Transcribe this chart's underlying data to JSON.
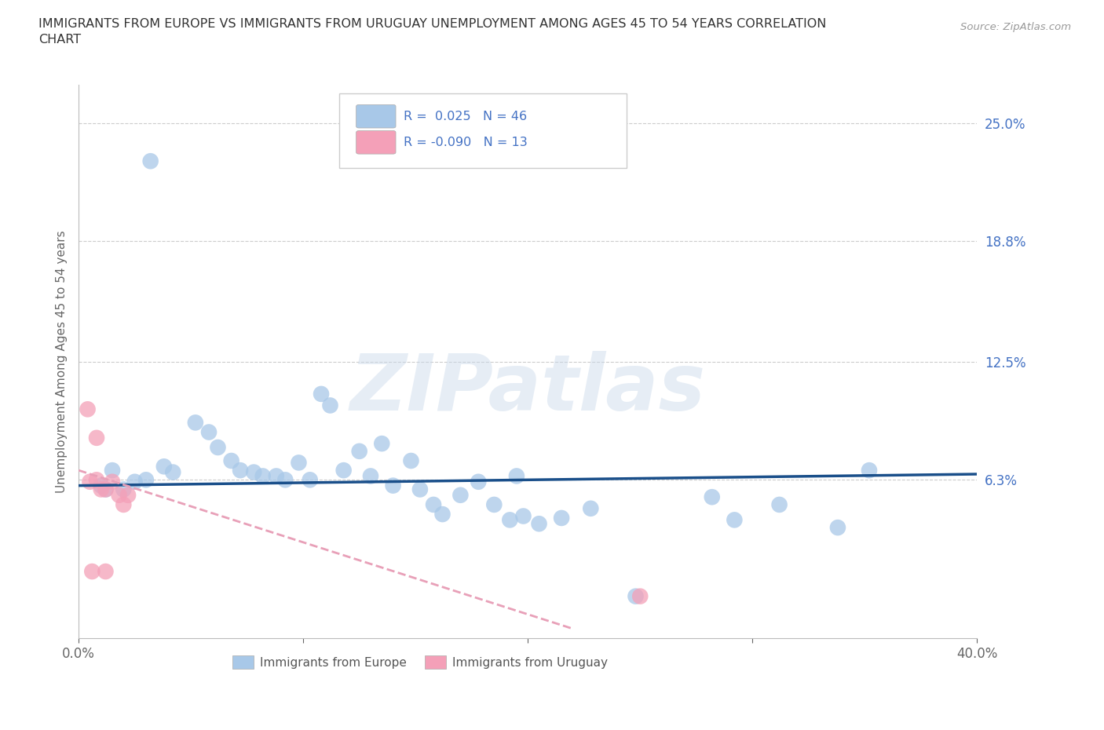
{
  "title": "IMMIGRANTS FROM EUROPE VS IMMIGRANTS FROM URUGUAY UNEMPLOYMENT AMONG AGES 45 TO 54 YEARS CORRELATION\nCHART",
  "source_text": "Source: ZipAtlas.com",
  "ylabel": "Unemployment Among Ages 45 to 54 years",
  "xlim": [
    0.0,
    0.4
  ],
  "ylim": [
    -0.02,
    0.27
  ],
  "xticks": [
    0.0,
    0.1,
    0.2,
    0.3,
    0.4
  ],
  "xticklabels": [
    "0.0%",
    "",
    "",
    "",
    "40.0%"
  ],
  "ytick_positions": [
    0.063,
    0.125,
    0.188,
    0.25
  ],
  "ytick_labels": [
    "6.3%",
    "12.5%",
    "18.8%",
    "25.0%"
  ],
  "R_europe": 0.025,
  "N_europe": 46,
  "R_uruguay": -0.09,
  "N_uruguay": 13,
  "blue_color": "#a8c8e8",
  "pink_color": "#f4a0b8",
  "blue_line_color": "#1a4f8a",
  "pink_line_color": "#e8a0b8",
  "legend_label_europe": "Immigrants from Europe",
  "legend_label_uruguay": "Immigrants from Uruguay",
  "watermark": "ZIPatlas",
  "blue_line_x0": 0.0,
  "blue_line_y0": 0.06,
  "blue_line_x1": 0.4,
  "blue_line_y1": 0.066,
  "pink_line_x0": 0.0,
  "pink_line_y0": 0.068,
  "pink_line_x1": 0.22,
  "pink_line_y1": -0.015,
  "blue_scatter_x": [
    0.03,
    0.02,
    0.015,
    0.012,
    0.01,
    0.025,
    0.032,
    0.038,
    0.042,
    0.052,
    0.058,
    0.062,
    0.068,
    0.072,
    0.078,
    0.082,
    0.088,
    0.092,
    0.098,
    0.103,
    0.108,
    0.112,
    0.118,
    0.125,
    0.13,
    0.135,
    0.14,
    0.148,
    0.152,
    0.158,
    0.162,
    0.17,
    0.178,
    0.185,
    0.192,
    0.198,
    0.205,
    0.215,
    0.228,
    0.248,
    0.282,
    0.292,
    0.312,
    0.338,
    0.352,
    0.195
  ],
  "blue_scatter_y": [
    0.063,
    0.058,
    0.068,
    0.058,
    0.06,
    0.062,
    0.23,
    0.07,
    0.067,
    0.093,
    0.088,
    0.08,
    0.073,
    0.068,
    0.067,
    0.065,
    0.065,
    0.063,
    0.072,
    0.063,
    0.108,
    0.102,
    0.068,
    0.078,
    0.065,
    0.082,
    0.06,
    0.073,
    0.058,
    0.05,
    0.045,
    0.055,
    0.062,
    0.05,
    0.042,
    0.044,
    0.04,
    0.043,
    0.048,
    0.002,
    0.054,
    0.042,
    0.05,
    0.038,
    0.068,
    0.065
  ],
  "pink_scatter_x": [
    0.004,
    0.008,
    0.01,
    0.012,
    0.015,
    0.018,
    0.02,
    0.022,
    0.005,
    0.008,
    0.012,
    0.006,
    0.25
  ],
  "pink_scatter_y": [
    0.1,
    0.063,
    0.058,
    0.058,
    0.062,
    0.055,
    0.05,
    0.055,
    0.062,
    0.085,
    0.015,
    0.015,
    0.002
  ]
}
